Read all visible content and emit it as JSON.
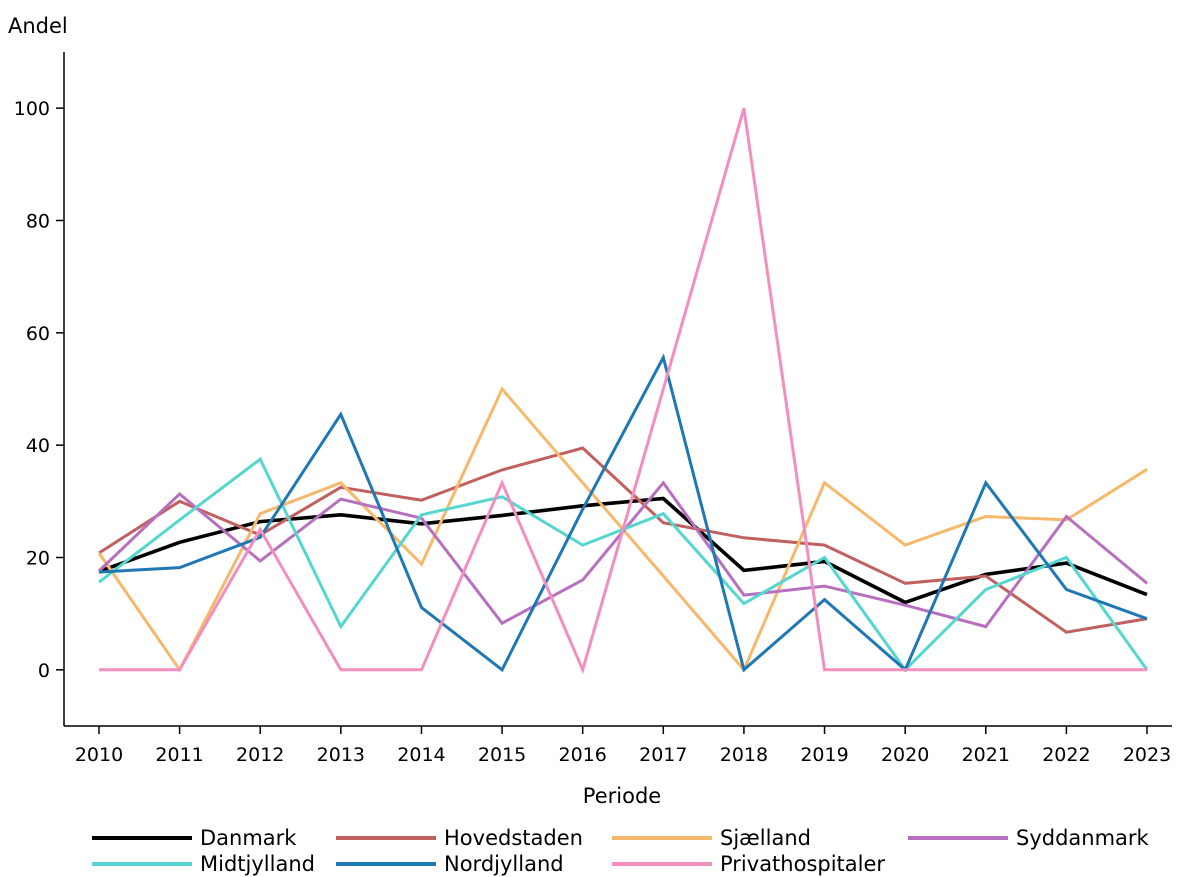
{
  "chart_data": {
    "type": "line",
    "ylabel": "Andel",
    "xlabel": "Periode",
    "x": [
      "2010",
      "2011",
      "2012",
      "2013",
      "2014",
      "2015",
      "2016",
      "2017",
      "2018",
      "2019",
      "2020",
      "2021",
      "2022",
      "2023"
    ],
    "ylim": [
      -10,
      110
    ],
    "yticks": [
      0,
      20,
      40,
      60,
      80,
      100
    ],
    "grid": false,
    "legend_position": "bottom",
    "series": [
      {
        "name": "Danmark",
        "color": "#000000",
        "values": [
          17.5,
          22.7,
          26.4,
          27.6,
          26.0,
          27.5,
          29.2,
          30.5,
          17.7,
          19.3,
          12.0,
          17.0,
          19.0,
          13.4
        ]
      },
      {
        "name": "Hovedstaden",
        "color": "#c0605f",
        "values": [
          20.8,
          30.0,
          24.0,
          32.5,
          30.2,
          35.6,
          39.5,
          26.2,
          23.5,
          22.2,
          15.4,
          16.7,
          6.7,
          9.1
        ]
      },
      {
        "name": "Sjælland",
        "color": "#f6b86a",
        "values": [
          20.8,
          0.0,
          27.8,
          33.3,
          18.8,
          50.0,
          33.3,
          16.7,
          0.0,
          33.3,
          22.2,
          27.3,
          26.7,
          35.7
        ]
      },
      {
        "name": "Syddanmark",
        "color": "#b770c0",
        "values": [
          17.6,
          31.3,
          19.4,
          30.4,
          27.0,
          8.3,
          16.0,
          33.3,
          13.3,
          14.9,
          11.5,
          7.7,
          27.3,
          15.4
        ]
      },
      {
        "name": "Midtjylland",
        "color": "#55d6cf",
        "values": [
          15.6,
          26.7,
          37.5,
          7.7,
          27.6,
          30.8,
          22.2,
          27.8,
          11.8,
          20.0,
          0.0,
          14.3,
          20.0,
          0.0
        ]
      },
      {
        "name": "Nordjylland",
        "color": "#1f78b4",
        "values": [
          17.4,
          18.2,
          23.6,
          45.5,
          11.1,
          0.0,
          28.6,
          55.6,
          0.0,
          12.5,
          0.0,
          33.3,
          14.3,
          9.1
        ]
      },
      {
        "name": "Privathospitaler",
        "color": "#f28fbf",
        "values": [
          0.0,
          0.0,
          25.0,
          0.0,
          0.0,
          33.3,
          0.0,
          50.0,
          100.0,
          0.0,
          0.0,
          0.0,
          0.0,
          0.0
        ]
      }
    ]
  }
}
